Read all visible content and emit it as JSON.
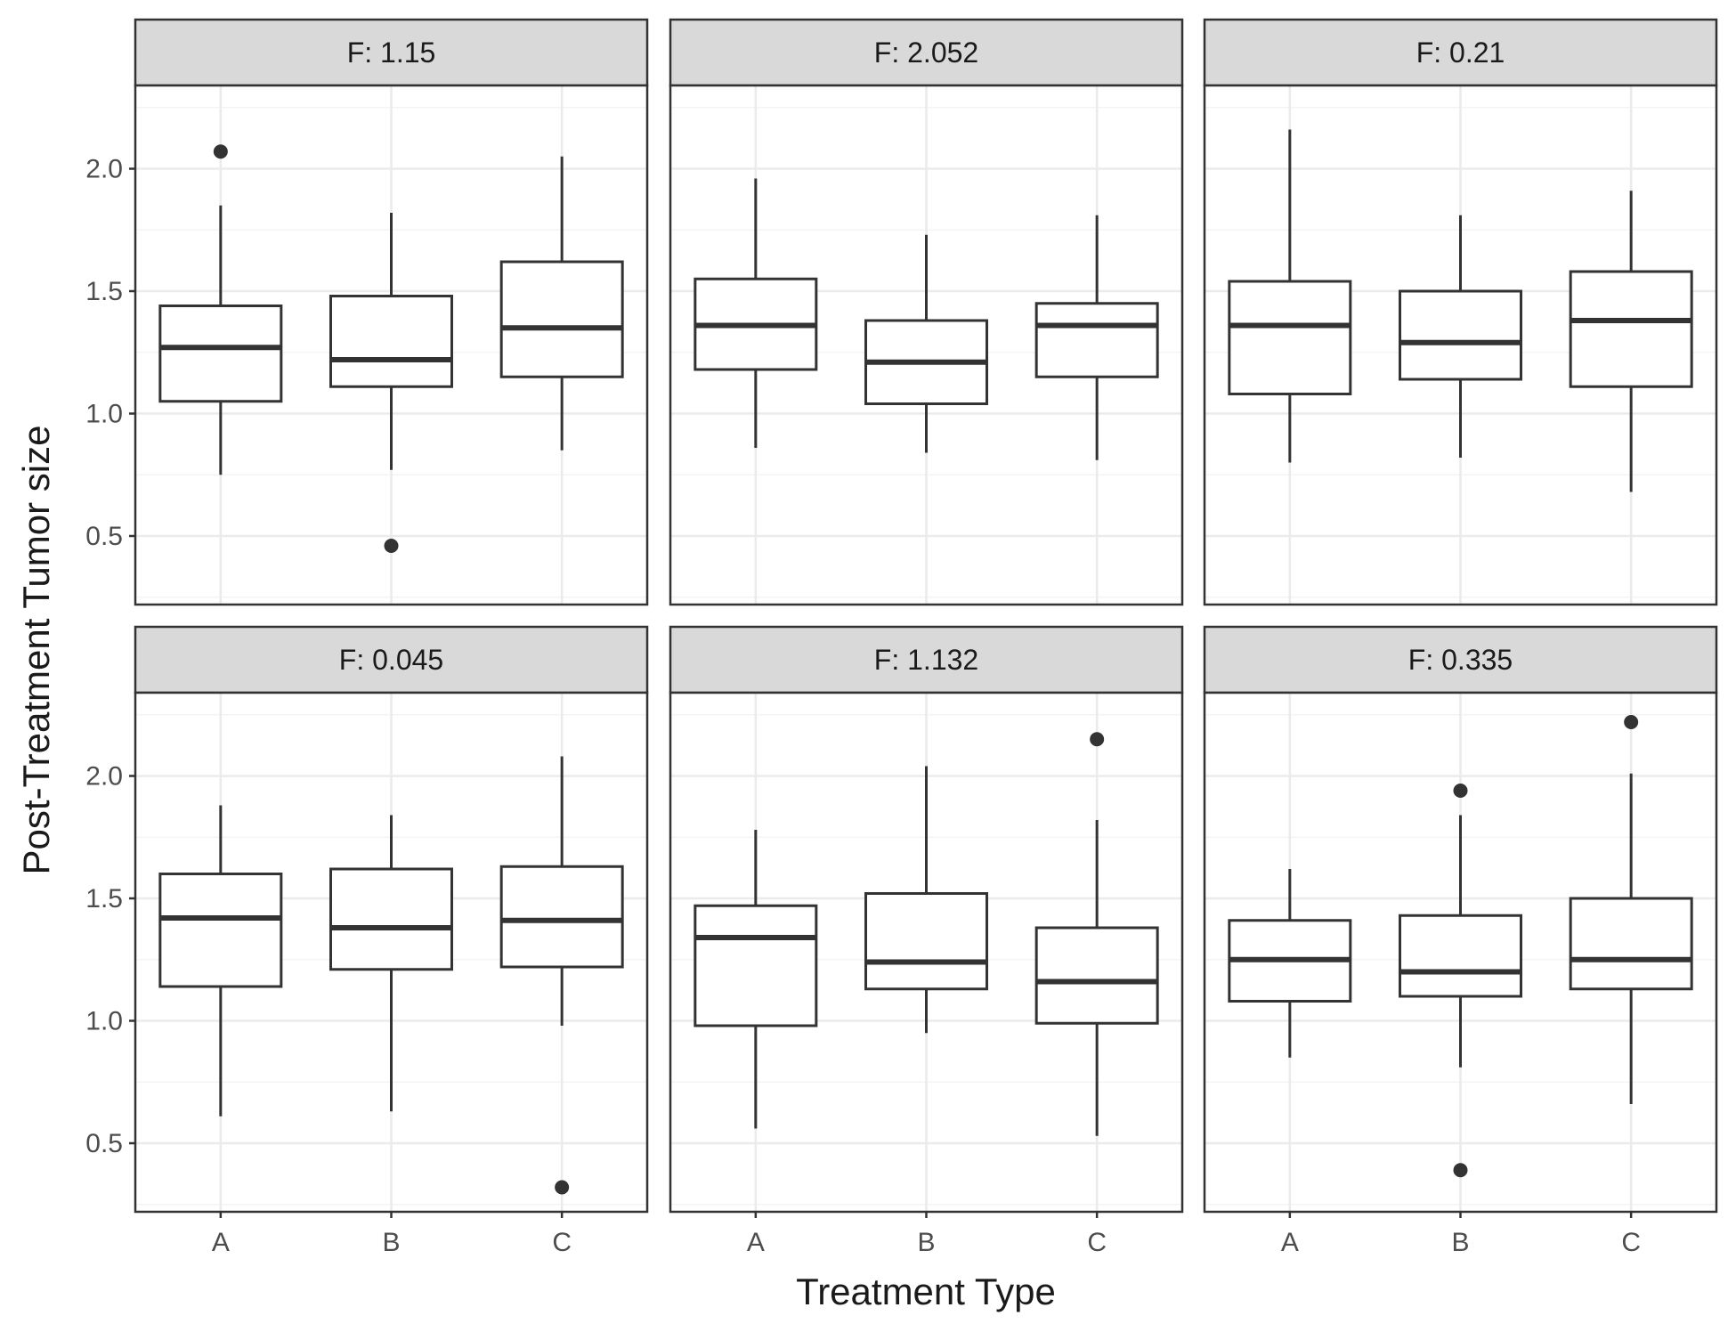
{
  "chart_data": {
    "type": "boxplot",
    "xlabel": "Treatment Type",
    "ylabel": "Post-Treatment Tumor size",
    "categories": [
      "A",
      "B",
      "C"
    ],
    "y_ticks": [
      0.5,
      1.0,
      1.5,
      2.0
    ],
    "y_tick_labels": [
      "0.5",
      "1.0",
      "1.5",
      "2.0"
    ],
    "ylim": [
      0.22,
      2.34
    ],
    "grid": true,
    "facet_layout": {
      "rows": 2,
      "cols": 3
    },
    "colors": {
      "box_line": "#333333",
      "strip_fill": "#d9d9d9",
      "panel_border": "#333333",
      "grid_major": "#ebebeb",
      "grid_minor": "#f4f4f4"
    },
    "panels": [
      {
        "strip": "F: 1.15",
        "boxes": [
          {
            "category": "A",
            "whisker_low": 0.75,
            "q1": 1.05,
            "median": 1.27,
            "q3": 1.44,
            "whisker_high": 1.85,
            "outliers": [
              2.07
            ]
          },
          {
            "category": "B",
            "whisker_low": 0.77,
            "q1": 1.11,
            "median": 1.22,
            "q3": 1.48,
            "whisker_high": 1.82,
            "outliers": [
              0.46
            ]
          },
          {
            "category": "C",
            "whisker_low": 0.85,
            "q1": 1.15,
            "median": 1.35,
            "q3": 1.62,
            "whisker_high": 2.05,
            "outliers": []
          }
        ]
      },
      {
        "strip": "F: 2.052",
        "boxes": [
          {
            "category": "A",
            "whisker_low": 0.86,
            "q1": 1.18,
            "median": 1.36,
            "q3": 1.55,
            "whisker_high": 1.96,
            "outliers": []
          },
          {
            "category": "B",
            "whisker_low": 0.84,
            "q1": 1.04,
            "median": 1.21,
            "q3": 1.38,
            "whisker_high": 1.73,
            "outliers": []
          },
          {
            "category": "C",
            "whisker_low": 0.81,
            "q1": 1.15,
            "median": 1.36,
            "q3": 1.45,
            "whisker_high": 1.81,
            "outliers": []
          }
        ]
      },
      {
        "strip": "F: 0.21",
        "boxes": [
          {
            "category": "A",
            "whisker_low": 0.8,
            "q1": 1.08,
            "median": 1.36,
            "q3": 1.54,
            "whisker_high": 2.16,
            "outliers": []
          },
          {
            "category": "B",
            "whisker_low": 0.82,
            "q1": 1.14,
            "median": 1.29,
            "q3": 1.5,
            "whisker_high": 1.81,
            "outliers": []
          },
          {
            "category": "C",
            "whisker_low": 0.68,
            "q1": 1.11,
            "median": 1.38,
            "q3": 1.58,
            "whisker_high": 1.91,
            "outliers": []
          }
        ]
      },
      {
        "strip": "F: 0.045",
        "boxes": [
          {
            "category": "A",
            "whisker_low": 0.61,
            "q1": 1.14,
            "median": 1.42,
            "q3": 1.6,
            "whisker_high": 1.88,
            "outliers": []
          },
          {
            "category": "B",
            "whisker_low": 0.63,
            "q1": 1.21,
            "median": 1.38,
            "q3": 1.62,
            "whisker_high": 1.84,
            "outliers": []
          },
          {
            "category": "C",
            "whisker_low": 0.98,
            "q1": 1.22,
            "median": 1.41,
            "q3": 1.63,
            "whisker_high": 2.08,
            "outliers": [
              0.32
            ]
          }
        ]
      },
      {
        "strip": "F: 1.132",
        "boxes": [
          {
            "category": "A",
            "whisker_low": 0.56,
            "q1": 0.98,
            "median": 1.34,
            "q3": 1.47,
            "whisker_high": 1.78,
            "outliers": []
          },
          {
            "category": "B",
            "whisker_low": 0.95,
            "q1": 1.13,
            "median": 1.24,
            "q3": 1.52,
            "whisker_high": 2.04,
            "outliers": []
          },
          {
            "category": "C",
            "whisker_low": 0.53,
            "q1": 0.99,
            "median": 1.16,
            "q3": 1.38,
            "whisker_high": 1.82,
            "outliers": [
              2.15
            ]
          }
        ]
      },
      {
        "strip": "F: 0.335",
        "boxes": [
          {
            "category": "A",
            "whisker_low": 0.85,
            "q1": 1.08,
            "median": 1.25,
            "q3": 1.41,
            "whisker_high": 1.62,
            "outliers": []
          },
          {
            "category": "B",
            "whisker_low": 0.81,
            "q1": 1.1,
            "median": 1.2,
            "q3": 1.43,
            "whisker_high": 1.84,
            "outliers": [
              1.94,
              0.39
            ]
          },
          {
            "category": "C",
            "whisker_low": 0.66,
            "q1": 1.13,
            "median": 1.25,
            "q3": 1.5,
            "whisker_high": 2.01,
            "outliers": [
              2.22
            ]
          }
        ]
      }
    ]
  }
}
